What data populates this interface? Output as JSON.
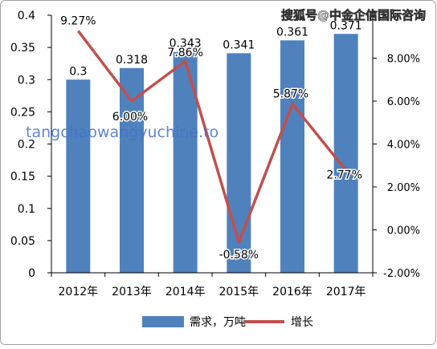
{
  "watermark_top": "搜狐号@中金企信国际咨询",
  "watermark_mid": "tangchaowangyuchine.to",
  "colors": {
    "bar": "#4F81BD",
    "line": "#C0504D",
    "axis": "#000000",
    "border": "#A0A0A0"
  },
  "chart_data": {
    "type": "bar",
    "categories": [
      "2012年",
      "2013年",
      "2014年",
      "2015年",
      "2016年",
      "2017年"
    ],
    "series": [
      {
        "name": "需求，万吨",
        "kind": "bar",
        "axis": "left",
        "values": [
          0.3,
          0.318,
          0.343,
          0.341,
          0.361,
          0.371
        ],
        "labels": [
          "0.3",
          "0.318",
          "0.343",
          "0.341",
          "0.361",
          "0.371"
        ]
      },
      {
        "name": "增长",
        "kind": "line",
        "axis": "right",
        "values": [
          9.27,
          6.0,
          7.86,
          -0.58,
          5.87,
          2.77
        ],
        "labels": [
          "9.27%",
          "6.00%",
          "7.86%",
          "-0.58%",
          "5.87%",
          "2.77%"
        ]
      }
    ],
    "y_left": {
      "min": 0,
      "max": 0.4,
      "ticks": [
        "0",
        "0.05",
        "0.1",
        "0.15",
        "0.2",
        "0.25",
        "0.3",
        "0.35",
        "0.4"
      ]
    },
    "y_right": {
      "min": -2,
      "max": 10,
      "ticks": [
        "-2.00%",
        "0.00%",
        "2.00%",
        "4.00%",
        "6.00%",
        "8.00%"
      ]
    },
    "legend_position": "bottom",
    "grid": false
  }
}
